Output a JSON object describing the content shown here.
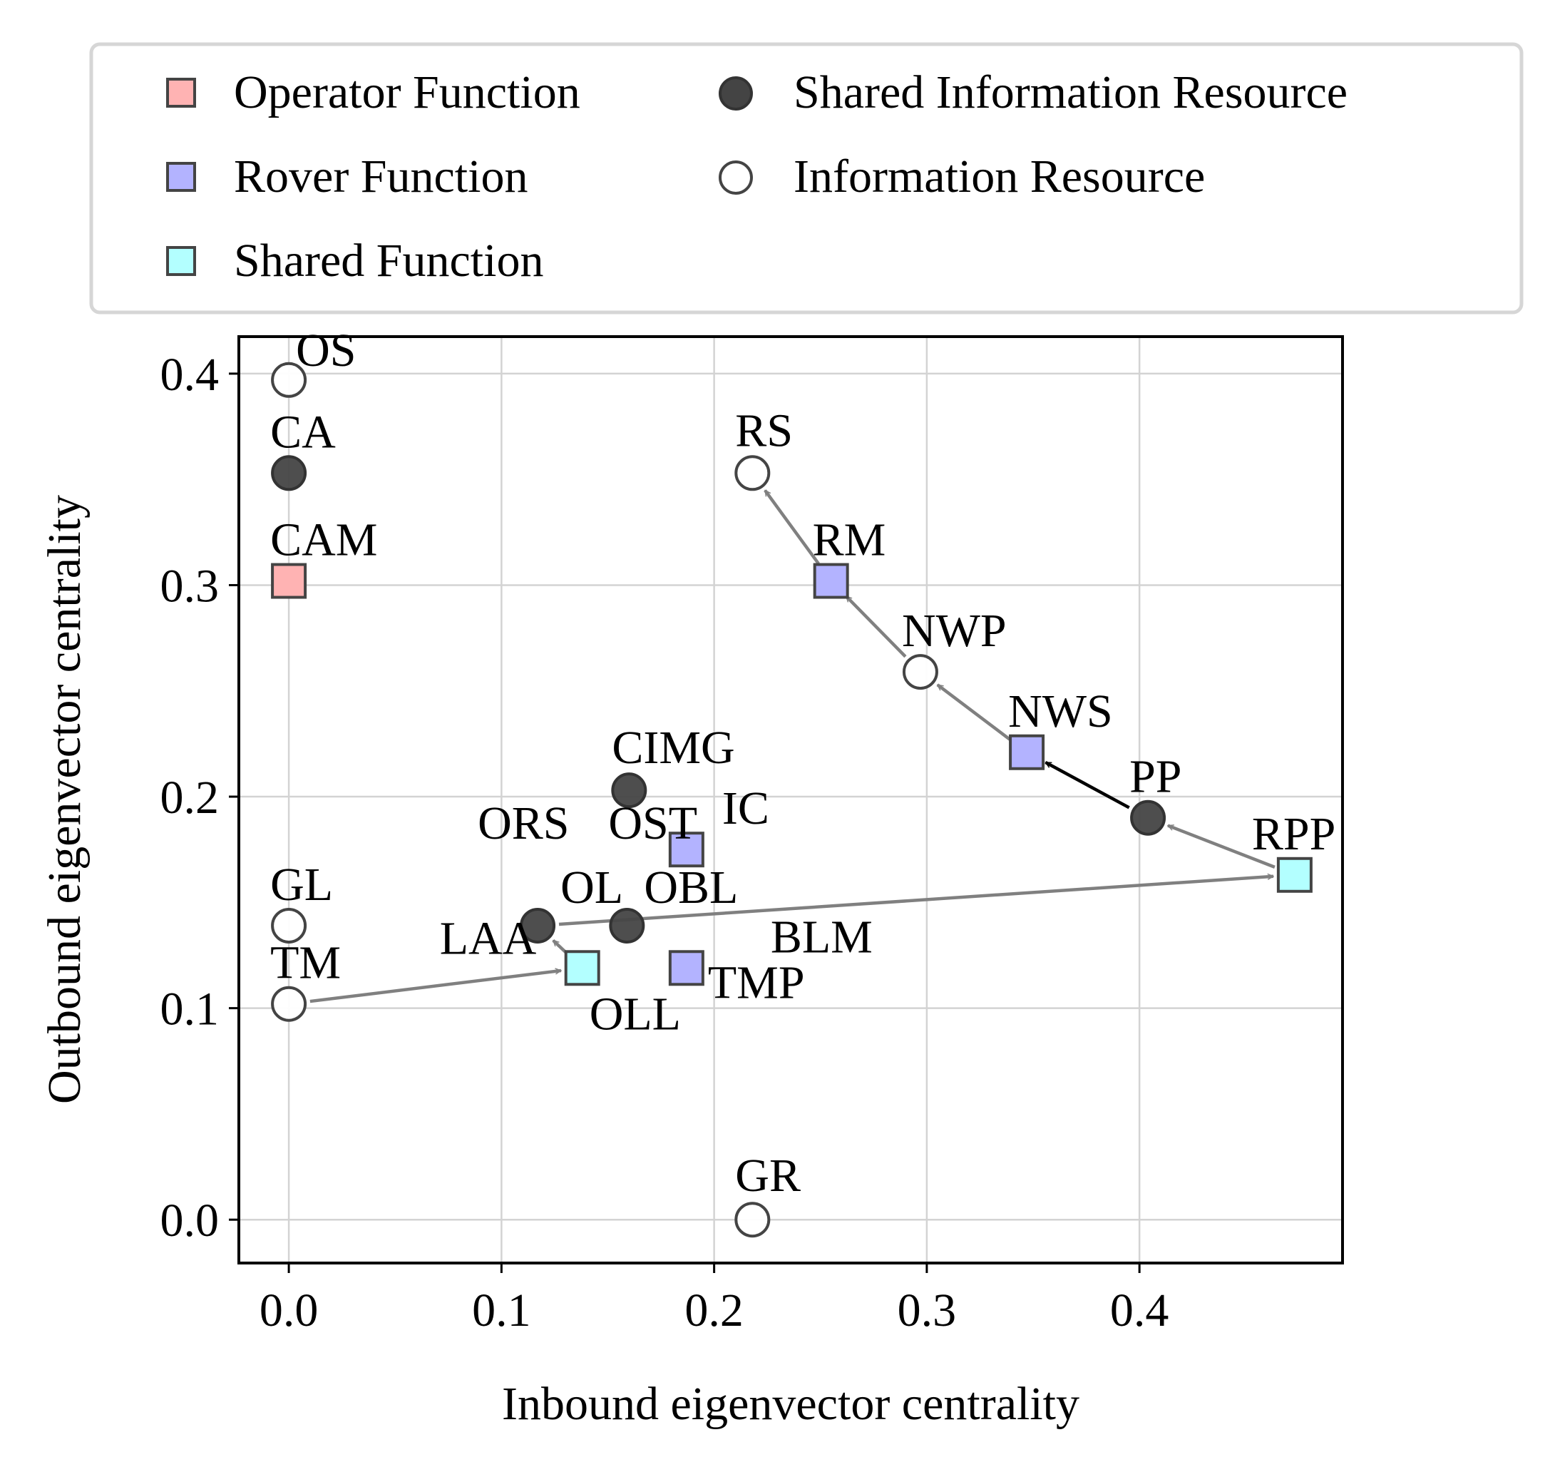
{
  "chart_data": {
    "type": "scatter",
    "xlabel": "Inbound eigenvector centrality",
    "ylabel": "Outbound eigenvector centrality",
    "xlim": [
      -0.0235,
      0.4955
    ],
    "ylim": [
      -0.0205,
      0.4175
    ],
    "xticks": [
      "0.0",
      "0.1",
      "0.2",
      "0.3",
      "0.4"
    ],
    "yticks": [
      "0.0",
      "0.1",
      "0.2",
      "0.3",
      "0.4"
    ],
    "grid": true,
    "legend": {
      "position": "top",
      "items": [
        {
          "label": "Operator Function",
          "marker": "square",
          "fill": "#ffb3b3",
          "edge": "#444444"
        },
        {
          "label": "Rover Function",
          "marker": "square",
          "fill": "#b3b3ff",
          "edge": "#444444"
        },
        {
          "label": "Shared Function",
          "marker": "square",
          "fill": "#b3ffff",
          "edge": "#444444"
        },
        {
          "label": "Shared Information Resource",
          "marker": "circle",
          "fill": "#444444",
          "edge": "#333333"
        },
        {
          "label": "Information Resource",
          "marker": "circle",
          "fill": "#ffffff",
          "edge": "#444444"
        }
      ]
    },
    "points": [
      {
        "label": "OS",
        "x": 0.0,
        "y": 0.397,
        "cat": "Information Resource"
      },
      {
        "label": "CA",
        "x": 0.0,
        "y": 0.353,
        "cat": "Shared Information Resource"
      },
      {
        "label": "CAM",
        "x": 0.0,
        "y": 0.302,
        "cat": "Operator Function"
      },
      {
        "label": "GL",
        "x": 0.0,
        "y": 0.139,
        "cat": "Information Resource"
      },
      {
        "label": "TM",
        "x": 0.0,
        "y": 0.102,
        "cat": "Information Resource"
      },
      {
        "label": "RS",
        "x": 0.218,
        "y": 0.353,
        "cat": "Information Resource"
      },
      {
        "label": "RM",
        "x": 0.255,
        "y": 0.302,
        "cat": "Rover Function"
      },
      {
        "label": "NWP",
        "x": 0.297,
        "y": 0.259,
        "cat": "Information Resource"
      },
      {
        "label": "NWS",
        "x": 0.347,
        "y": 0.221,
        "cat": "Rover Function"
      },
      {
        "label": "PP",
        "x": 0.404,
        "y": 0.19,
        "cat": "Shared Information Resource"
      },
      {
        "label": "RPP",
        "x": 0.473,
        "y": 0.163,
        "cat": "Shared Function"
      },
      {
        "label": "CIMG",
        "x": 0.16,
        "y": 0.203,
        "cat": "Shared Information Resource"
      },
      {
        "label": "IC",
        "x": 0.187,
        "y": 0.175,
        "cat": "Rover Function"
      },
      {
        "label": "ORS",
        "x": 0.117,
        "y": 0.139,
        "cat": "Shared Information Resource"
      },
      {
        "label": "OST",
        "x": 0.159,
        "y": 0.139,
        "cat": "Shared Information Resource"
      },
      {
        "label": "OL",
        "x": 0.117,
        "y": 0.139,
        "cat": "Shared Information Resource"
      },
      {
        "label": "OBL",
        "x": 0.159,
        "y": 0.139,
        "cat": "Shared Information Resource"
      },
      {
        "label": "BLM",
        "x": 0.187,
        "y": 0.119,
        "cat": "Rover Function"
      },
      {
        "label": "LAA",
        "x": 0.138,
        "y": 0.119,
        "cat": "Shared Function"
      },
      {
        "label": "OLL",
        "x": 0.138,
        "y": 0.119,
        "cat": "Shared Function"
      },
      {
        "label": "TMP",
        "x": 0.187,
        "y": 0.119,
        "cat": "Rover Function"
      },
      {
        "label": "GR",
        "x": 0.218,
        "y": 0.0,
        "cat": "Information Resource"
      }
    ],
    "arrows": [
      {
        "from": [
          0.255,
          0.302
        ],
        "to": [
          0.218,
          0.353
        ],
        "color": "#808080"
      },
      {
        "from": [
          0.297,
          0.259
        ],
        "to": [
          0.255,
          0.302
        ],
        "color": "#808080"
      },
      {
        "from": [
          0.347,
          0.221
        ],
        "to": [
          0.297,
          0.259
        ],
        "color": "#808080"
      },
      {
        "from": [
          0.404,
          0.19
        ],
        "to": [
          0.347,
          0.221
        ],
        "color": "#000000"
      },
      {
        "from": [
          0.473,
          0.163
        ],
        "to": [
          0.404,
          0.19
        ],
        "color": "#808080"
      },
      {
        "from": [
          0.117,
          0.139
        ],
        "to": [
          0.473,
          0.163
        ],
        "color": "#808080"
      },
      {
        "from": [
          0.0,
          0.102
        ],
        "to": [
          0.138,
          0.119
        ],
        "color": "#808080"
      },
      {
        "from": [
          0.138,
          0.119
        ],
        "to": [
          0.117,
          0.139
        ],
        "color": "#808080"
      }
    ]
  }
}
